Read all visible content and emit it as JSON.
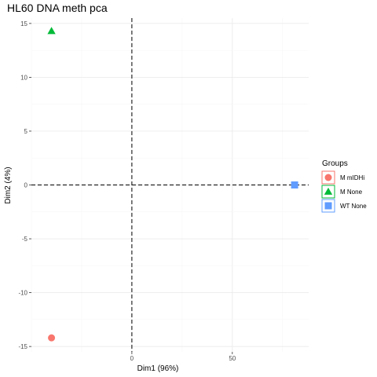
{
  "chart_data": {
    "type": "scatter",
    "title": "HL60 DNA meth pca",
    "xlabel": "Dim1 (96%)",
    "ylabel": "Dim2 (4%)",
    "xlim": [
      -50,
      88
    ],
    "ylim": [
      -15.5,
      15.5
    ],
    "xticks": [
      0,
      50
    ],
    "yticks": [
      -15,
      -10,
      -5,
      0,
      5,
      10,
      15
    ],
    "grid": true,
    "reference_lines": {
      "x": 0,
      "y": 0,
      "style": "dashed"
    },
    "legend": {
      "title": "Groups",
      "placement": "right"
    },
    "series": [
      {
        "name": "M mIDHi",
        "color": "#F8766D",
        "marker": "circle",
        "points": [
          {
            "x": -40,
            "y": -14.2
          }
        ]
      },
      {
        "name": "M None",
        "color": "#00BA38",
        "marker": "triangle",
        "points": [
          {
            "x": -40,
            "y": 14.3
          }
        ]
      },
      {
        "name": "WT None",
        "color": "#619CFF",
        "marker": "square",
        "points": [
          {
            "x": 81,
            "y": 0
          }
        ]
      }
    ]
  }
}
